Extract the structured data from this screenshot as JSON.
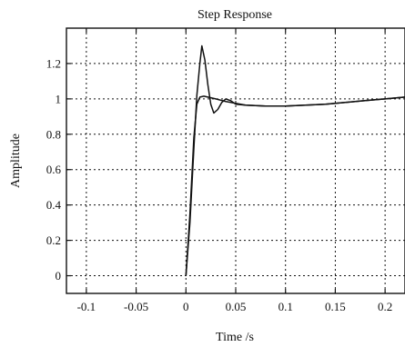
{
  "chart_data": {
    "type": "line",
    "title": "Step Response",
    "xlabel": "Time /s",
    "ylabel": "Amplitude",
    "xlim": [
      -0.12,
      0.22
    ],
    "ylim": [
      -0.1,
      1.4
    ],
    "xticks": [
      -0.1,
      -0.05,
      0,
      0.05,
      0.1,
      0.15,
      0.2
    ],
    "xtick_labels": [
      "-0.1",
      "-0.05",
      "0",
      "0.05",
      "0.1",
      "0.15",
      "0.2"
    ],
    "yticks": [
      0,
      0.2,
      0.4,
      0.6,
      0.8,
      1,
      1.2
    ],
    "ytick_labels": [
      "0",
      "0.2",
      "0.4",
      "0.6",
      "0.8",
      "1",
      "1.2"
    ],
    "grid": true,
    "legend": "none",
    "series": [
      {
        "color": "#111111",
        "x": [
          0,
          0.004,
          0.008,
          0.011,
          0.014,
          0.016,
          0.019,
          0.022,
          0.025,
          0.028,
          0.032,
          0.036,
          0.04,
          0.045,
          0.05,
          0.06,
          0.08,
          0.1,
          0.12,
          0.14,
          0.16,
          0.18,
          0.2,
          0.22
        ],
        "y": [
          0,
          0.3,
          0.72,
          1.02,
          1.2,
          1.3,
          1.22,
          1.08,
          0.97,
          0.92,
          0.94,
          0.98,
          1.0,
          0.99,
          0.97,
          0.965,
          0.96,
          0.96,
          0.965,
          0.97,
          0.98,
          0.99,
          1.0,
          1.01
        ]
      },
      {
        "color": "#111111",
        "x": [
          0,
          0.004,
          0.008,
          0.011,
          0.014,
          0.018,
          0.022,
          0.03,
          0.04,
          0.05,
          0.06,
          0.08,
          0.1,
          0.12,
          0.14,
          0.16,
          0.18,
          0.2,
          0.22
        ],
        "y": [
          0,
          0.35,
          0.78,
          0.97,
          1.01,
          1.015,
          1.01,
          1.0,
          0.985,
          0.975,
          0.965,
          0.96,
          0.96,
          0.965,
          0.97,
          0.98,
          0.99,
          1.0,
          1.01
        ]
      }
    ]
  }
}
